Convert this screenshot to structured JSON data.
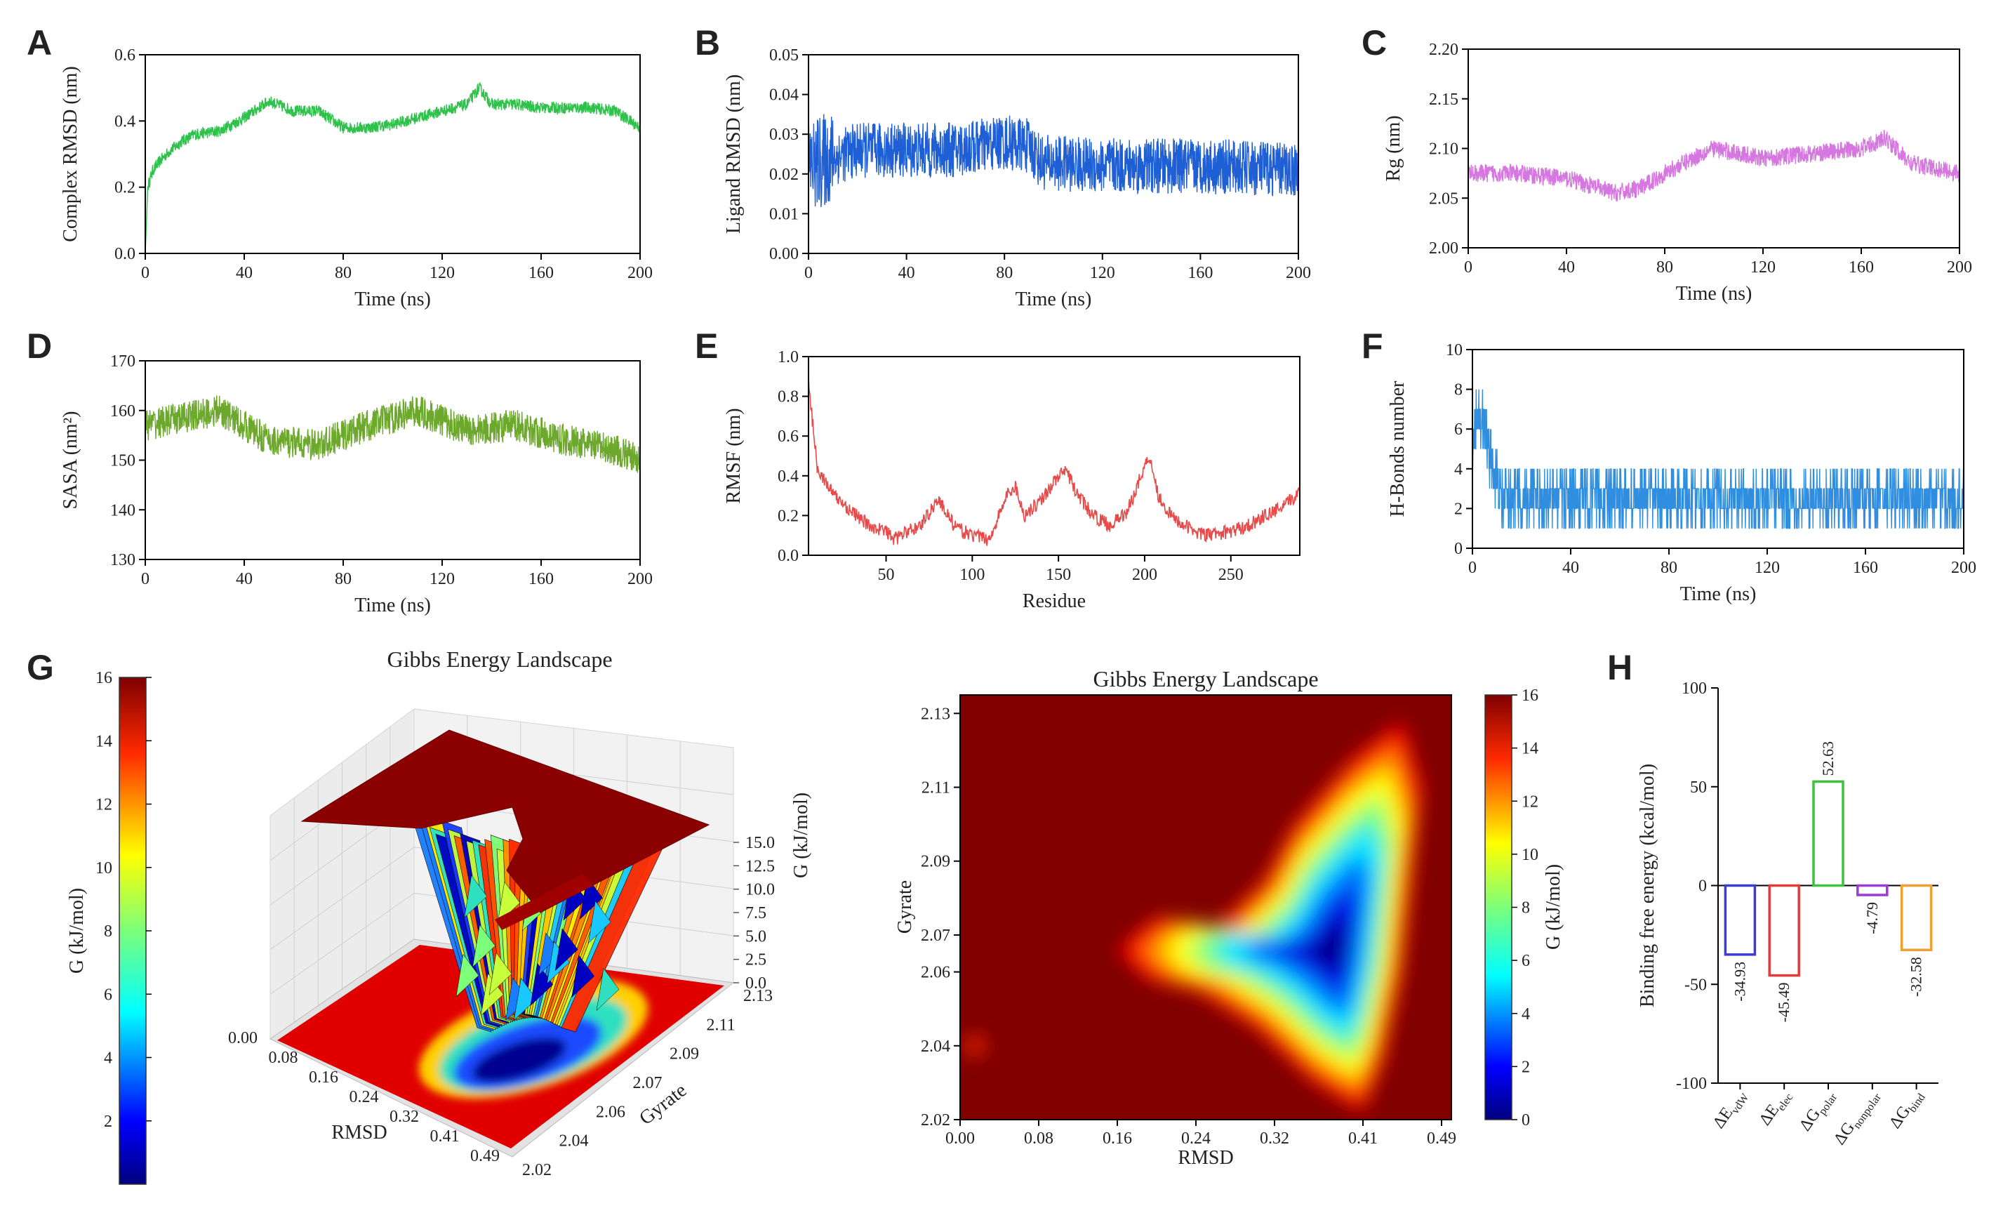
{
  "figure": {
    "panel_labels": [
      "A",
      "B",
      "C",
      "D",
      "E",
      "F",
      "G",
      "H"
    ]
  },
  "chart_data": [
    {
      "id": "A",
      "type": "line",
      "color": "#2ec24a",
      "xlabel": "Time (ns)",
      "ylabel": "Complex RMSD (nm)",
      "xlim": [
        0,
        200
      ],
      "ylim": [
        0,
        0.6
      ],
      "xticks": [
        "0",
        "40",
        "80",
        "120",
        "160",
        "200"
      ],
      "yticks": [
        "0.0",
        "0.2",
        "0.4",
        "0.6"
      ],
      "series": {
        "x": [
          0,
          1,
          3,
          6,
          10,
          15,
          20,
          30,
          40,
          50,
          60,
          70,
          80,
          90,
          100,
          110,
          120,
          130,
          135,
          140,
          150,
          160,
          170,
          180,
          190,
          200
        ],
        "y": [
          0,
          0.2,
          0.25,
          0.28,
          0.31,
          0.34,
          0.36,
          0.37,
          0.41,
          0.46,
          0.43,
          0.43,
          0.38,
          0.38,
          0.39,
          0.41,
          0.43,
          0.45,
          0.5,
          0.45,
          0.45,
          0.44,
          0.44,
          0.44,
          0.43,
          0.38
        ],
        "noise": 0.018
      }
    },
    {
      "id": "B",
      "type": "line",
      "color": "#1f5fd6",
      "xlabel": "Time (ns)",
      "ylabel": "Ligand RMSD (nm)",
      "xlim": [
        0,
        200
      ],
      "ylim": [
        0,
        0.05
      ],
      "xticks": [
        "0",
        "40",
        "80",
        "120",
        "160",
        "200"
      ],
      "yticks": [
        "0.00",
        "0.01",
        "0.02",
        "0.03",
        "0.04",
        "0.05"
      ],
      "series": {
        "x": [
          0,
          10,
          20,
          40,
          60,
          80,
          90,
          95,
          120,
          160,
          200
        ],
        "y": [
          0.022,
          0.024,
          0.026,
          0.026,
          0.026,
          0.028,
          0.027,
          0.023,
          0.022,
          0.022,
          0.021
        ],
        "noise": 0.007
      }
    },
    {
      "id": "C",
      "type": "line",
      "color": "#d676e0",
      "xlabel": "Time (ns)",
      "ylabel": "Rg (nm)",
      "xlim": [
        0,
        200
      ],
      "ylim": [
        2.0,
        2.2
      ],
      "xticks": [
        "0",
        "40",
        "80",
        "120",
        "160",
        "200"
      ],
      "yticks": [
        "2.00",
        "2.05",
        "2.10",
        "2.15",
        "2.20"
      ],
      "series": {
        "x": [
          0,
          20,
          40,
          60,
          70,
          80,
          95,
          100,
          120,
          140,
          160,
          170,
          180,
          200
        ],
        "y": [
          2.075,
          2.075,
          2.07,
          2.055,
          2.06,
          2.075,
          2.095,
          2.1,
          2.09,
          2.095,
          2.1,
          2.11,
          2.085,
          2.075
        ],
        "noise": 0.009
      }
    },
    {
      "id": "D",
      "type": "line",
      "color": "#6ca82c",
      "xlabel": "Time (ns)",
      "ylabel": "SASA (nm²)",
      "xlim": [
        0,
        200
      ],
      "ylim": [
        130,
        170
      ],
      "xticks": [
        "0",
        "40",
        "80",
        "120",
        "160",
        "200"
      ],
      "yticks": [
        "130",
        "140",
        "150",
        "160",
        "170"
      ],
      "series": {
        "x": [
          0,
          10,
          30,
          50,
          70,
          90,
          110,
          130,
          150,
          170,
          190,
          200
        ],
        "y": [
          157,
          158,
          160,
          154,
          153,
          157,
          160,
          156,
          157,
          154,
          152,
          150
        ],
        "noise": 3.2
      }
    },
    {
      "id": "E",
      "type": "line",
      "color": "#e84a4a",
      "xlabel": "Residue",
      "ylabel": "RMSF (nm)",
      "xlim": [
        5,
        290
      ],
      "ylim": [
        0,
        1.0
      ],
      "xticks": [
        "50",
        "100",
        "150",
        "200",
        "250"
      ],
      "yticks": [
        "0.0",
        "0.2",
        "0.4",
        "0.6",
        "0.8",
        "1.0"
      ],
      "series": {
        "x": [
          5,
          7,
          10,
          14,
          20,
          30,
          40,
          50,
          55,
          60,
          70,
          80,
          85,
          90,
          100,
          110,
          120,
          125,
          130,
          140,
          150,
          155,
          160,
          170,
          180,
          190,
          200,
          203,
          208,
          215,
          225,
          235,
          250,
          260,
          270,
          280,
          290
        ],
        "y": [
          0.88,
          0.7,
          0.45,
          0.38,
          0.3,
          0.22,
          0.15,
          0.12,
          0.08,
          0.11,
          0.15,
          0.28,
          0.22,
          0.14,
          0.1,
          0.08,
          0.3,
          0.35,
          0.2,
          0.28,
          0.4,
          0.42,
          0.32,
          0.2,
          0.15,
          0.22,
          0.45,
          0.5,
          0.3,
          0.2,
          0.14,
          0.1,
          0.12,
          0.15,
          0.2,
          0.24,
          0.32
        ],
        "noise": 0.035
      }
    },
    {
      "id": "F",
      "type": "line",
      "color": "#2f8ee0",
      "xlabel": "Time (ns)",
      "ylabel": "H-Bonds number",
      "xlim": [
        0,
        200
      ],
      "ylim": [
        0,
        10
      ],
      "xticks": [
        "0",
        "40",
        "80",
        "120",
        "160",
        "200"
      ],
      "yticks": [
        "0",
        "2",
        "4",
        "6",
        "8",
        "10"
      ],
      "series": {
        "x": [
          0,
          2,
          5,
          8,
          12,
          200
        ],
        "y": [
          5,
          7,
          6.5,
          4,
          2.5,
          2.5
        ],
        "noise": 1.4
      }
    },
    {
      "id": "G-3D",
      "type": "surface",
      "title": "Gibbs Energy Landscape",
      "xlabel": "RMSD",
      "ylabel": "Gyrate",
      "zlabel": "G (kJ/mol)",
      "xticks": [
        "0.00",
        "0.08",
        "0.16",
        "0.24",
        "0.32",
        "0.41",
        "0.49"
      ],
      "yticks": [
        "2.02",
        "2.04",
        "2.06",
        "2.07",
        "2.09",
        "2.11",
        "2.13"
      ],
      "zticks": [
        "0.0",
        "2.5",
        "5.0",
        "7.5",
        "10.0",
        "12.5",
        "15.0"
      ],
      "colorbar": {
        "label": "G (kJ/mol)",
        "ticks": [
          "2",
          "4",
          "6",
          "8",
          "10",
          "12",
          "14",
          "16"
        ],
        "range": [
          0,
          16
        ]
      }
    },
    {
      "id": "G-2D",
      "type": "heatmap",
      "title": "Gibbs Energy Landscape",
      "xlabel": "RMSD",
      "ylabel": "Gyrate",
      "xticks": [
        "0.00",
        "0.08",
        "0.16",
        "0.24",
        "0.32",
        "0.41",
        "0.49"
      ],
      "yticks": [
        "2.02",
        "2.04",
        "2.06",
        "2.07",
        "2.09",
        "2.11",
        "2.13"
      ],
      "minimum": {
        "rmsd": 0.38,
        "gyrate": 2.066
      },
      "colorbar": {
        "label": "G (kJ/mol)",
        "ticks": [
          "0",
          "2",
          "4",
          "6",
          "8",
          "10",
          "12",
          "14",
          "16"
        ],
        "range": [
          0,
          16
        ]
      }
    },
    {
      "id": "H",
      "type": "bar",
      "ylabel": "Binding free energy (kcal/mol)",
      "ylim": [
        -100,
        100
      ],
      "yticks": [
        "-100",
        "-50",
        "0",
        "50",
        "100"
      ],
      "categories": [
        {
          "main": "ΔE",
          "sub": "vdW"
        },
        {
          "main": "ΔE",
          "sub": "elec"
        },
        {
          "main": "ΔG",
          "sub": "polar"
        },
        {
          "main": "ΔG",
          "sub": "nonpolar"
        },
        {
          "main": "ΔG",
          "sub": "bind"
        }
      ],
      "values": [
        -34.93,
        -45.49,
        52.63,
        -4.79,
        -32.58
      ],
      "value_labels": [
        "-34.93",
        "-45.49",
        "52.63",
        "-4.79",
        "-32.58"
      ],
      "colors": [
        "#3b3bd6",
        "#e33b3b",
        "#3cc43c",
        "#9b3bdb",
        "#f0a030"
      ]
    }
  ]
}
